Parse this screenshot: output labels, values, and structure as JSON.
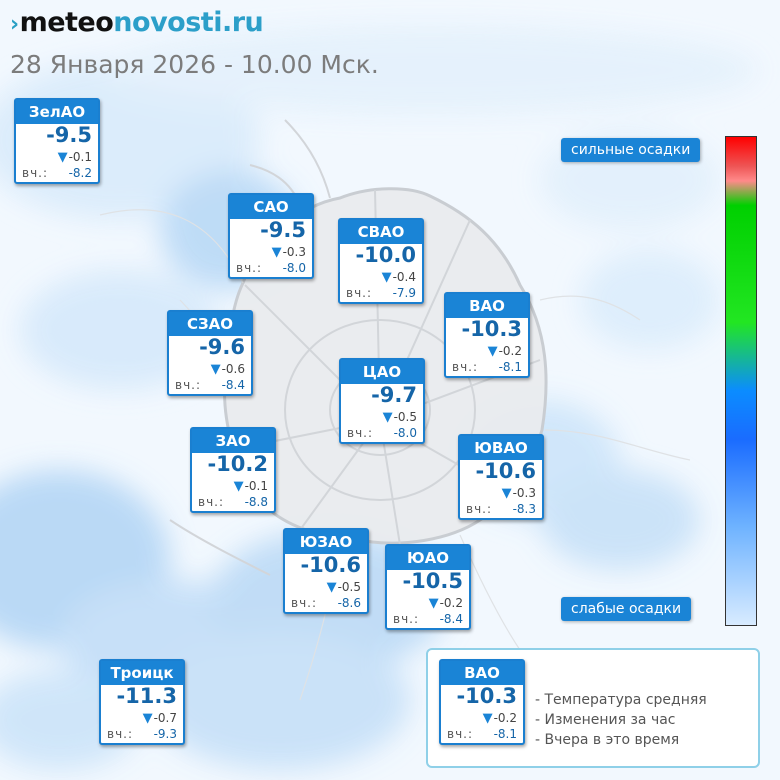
{
  "header": {
    "logo_mark": "›",
    "logo_part1": "meteo",
    "logo_part2": "novosti.ru",
    "date": "28 Января 2026 - 10.00 Мск."
  },
  "yesterday_label": "вч.:",
  "districts": [
    {
      "name": "ЗелАО",
      "temp": "-9.5",
      "change": "-0.1",
      "yesterday": "-8.2"
    },
    {
      "name": "САО",
      "temp": "-9.5",
      "change": "-0.3",
      "yesterday": "-8.0"
    },
    {
      "name": "СВАО",
      "temp": "-10.0",
      "change": "-0.4",
      "yesterday": "-7.9"
    },
    {
      "name": "ВАО",
      "temp": "-10.3",
      "change": "-0.2",
      "yesterday": "-8.1"
    },
    {
      "name": "СЗАО",
      "temp": "-9.6",
      "change": "-0.6",
      "yesterday": "-8.4"
    },
    {
      "name": "ЦАО",
      "temp": "-9.7",
      "change": "-0.5",
      "yesterday": "-8.0"
    },
    {
      "name": "ЗАО",
      "temp": "-10.2",
      "change": "-0.1",
      "yesterday": "-8.8"
    },
    {
      "name": "ЮВАО",
      "temp": "-10.6",
      "change": "-0.3",
      "yesterday": "-8.3"
    },
    {
      "name": "ЮЗАО",
      "temp": "-10.6",
      "change": "-0.5",
      "yesterday": "-8.6"
    },
    {
      "name": "ЮАО",
      "temp": "-10.5",
      "change": "-0.2",
      "yesterday": "-8.4"
    },
    {
      "name": "Троицк",
      "temp": "-11.3",
      "change": "-0.7",
      "yesterday": "-9.3"
    }
  ],
  "scale": {
    "top_label": "сильные осадки",
    "bottom_label": "слабые осадки",
    "colors": [
      "#ff0000",
      "#00d000",
      "#1a6cff",
      "#d8ebff"
    ]
  },
  "legend": {
    "example": {
      "name": "ВАО",
      "temp": "-10.3",
      "change": "-0.2",
      "yesterday": "-8.1"
    },
    "lines": [
      "- Температура средняя",
      "- Изменения за час",
      "- Вчера в это время"
    ]
  },
  "colors": {
    "accent": "#1a84d6",
    "value": "#1565a8"
  }
}
